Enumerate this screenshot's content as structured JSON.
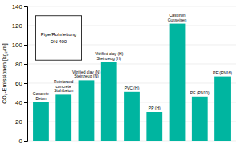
{
  "chart_data": {
    "type": "bar",
    "categories": [
      "Concrete\nBeton",
      "Reinforced\nconcrete\nStahlbeton",
      "Vitrified clay (N)\nSteinzeug (N)",
      "Vitrified clay (H)\nSteinzeug (H)",
      "PVC (H)",
      "PP (H)",
      "Cast iron\nGusseisen",
      "PE (PN10)",
      "PE (PN16)"
    ],
    "values": [
      40,
      48,
      63,
      82,
      51,
      30,
      122,
      46,
      67
    ],
    "color": "#00b5a0",
    "ylabel": "CO₂-Emissionen [kg₂/m]",
    "annotations": [
      "Pipe/Rohrleitung\nDN 400"
    ],
    "ylim": [
      0,
      140
    ],
    "yticks": [
      0,
      20,
      40,
      60,
      80,
      100,
      120,
      140
    ],
    "grid": true,
    "tick_labels": "y"
  }
}
